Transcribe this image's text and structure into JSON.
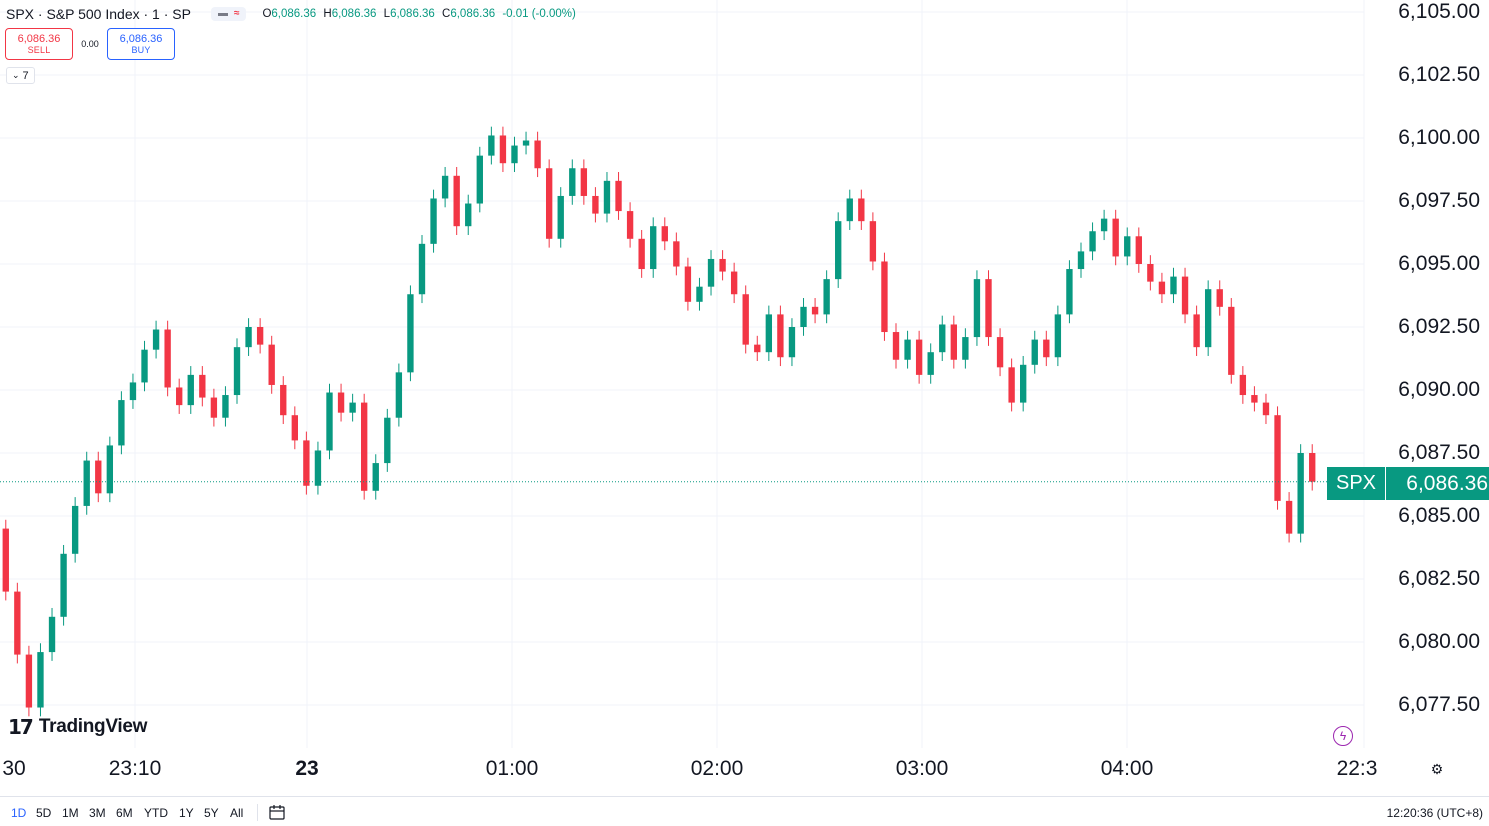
{
  "header": {
    "symbol_title": "SPX · S&P 500 Index · 1 · SP",
    "ohlc": {
      "o_label": "O",
      "o": "6,086.36",
      "h_label": "H",
      "h": "6,086.36",
      "l_label": "L",
      "l": "6,086.36",
      "c_label": "C",
      "c": "6,086.36",
      "change": "-0.01 (-0.00%)"
    }
  },
  "trade": {
    "sell_price": "6,086.36",
    "sell_label": "SELL",
    "spread": "0.00",
    "buy_price": "6,086.36",
    "buy_label": "BUY"
  },
  "indicators_toggle": {
    "count": "7"
  },
  "logo_text": "TradingView",
  "last_price": {
    "symbol": "SPX",
    "value": "6,086.36",
    "color": "#089981"
  },
  "colors": {
    "up": "#089981",
    "down": "#f23645",
    "grid": "#f0f3fa",
    "accent": "#2962ff"
  },
  "price_axis": [
    "6,105.00",
    "6,102.50",
    "6,100.00",
    "6,097.50",
    "6,095.00",
    "6,092.50",
    "6,090.00",
    "6,087.50",
    "6,085.00",
    "6,082.50",
    "6,080.00",
    "6,077.50"
  ],
  "time_axis": [
    "30",
    "23:10",
    "23",
    "01:00",
    "02:00",
    "03:00",
    "04:00",
    "22:3"
  ],
  "ranges": [
    "1D",
    "5D",
    "1M",
    "3M",
    "6M",
    "YTD",
    "1Y",
    "5Y",
    "All"
  ],
  "active_range": "1D",
  "clock": "12:20:36 (UTC+8)",
  "chart_data": {
    "type": "candlestick",
    "title": "SPX · S&P 500 Index · 1 · SP",
    "ylim": [
      6076.4,
      6105.3
    ],
    "y_ticks": [
      6077.5,
      6080,
      6082.5,
      6085,
      6087.5,
      6090,
      6092.5,
      6095,
      6097.5,
      6100,
      6102.5,
      6105
    ],
    "x_ticks": [
      "30",
      "23:10",
      "23",
      "01:00",
      "02:00",
      "03:00",
      "04:00",
      "22:3"
    ],
    "last_price": 6086.36,
    "grid": true,
    "series": [
      {
        "values": [
          [
            6084.5,
            6082.0
          ],
          [
            6082.0,
            6079.5
          ],
          [
            6079.5,
            6077.4
          ],
          [
            6077.4,
            6079.6
          ],
          [
            6079.6,
            6081.0
          ],
          [
            6081.0,
            6083.5
          ],
          [
            6083.5,
            6085.4
          ],
          [
            6085.4,
            6087.2
          ],
          [
            6087.2,
            6085.9
          ],
          [
            6085.9,
            6087.8
          ],
          [
            6087.8,
            6089.6
          ],
          [
            6089.6,
            6090.3
          ],
          [
            6090.3,
            6091.6
          ],
          [
            6091.6,
            6092.4
          ],
          [
            6092.4,
            6090.1
          ],
          [
            6090.1,
            6089.4
          ],
          [
            6089.4,
            6090.6
          ],
          [
            6090.6,
            6089.7
          ],
          [
            6089.7,
            6088.9
          ],
          [
            6088.9,
            6089.8
          ],
          [
            6089.8,
            6091.7
          ],
          [
            6091.7,
            6092.5
          ],
          [
            6092.5,
            6091.8
          ],
          [
            6091.8,
            6090.2
          ],
          [
            6090.2,
            6089.0
          ],
          [
            6089.0,
            6088.0
          ],
          [
            6088.0,
            6086.2
          ],
          [
            6086.2,
            6087.6
          ],
          [
            6087.6,
            6089.9
          ],
          [
            6089.9,
            6089.1
          ],
          [
            6089.1,
            6089.5
          ],
          [
            6089.5,
            6086.0
          ],
          [
            6086.0,
            6087.1
          ],
          [
            6087.1,
            6088.9
          ],
          [
            6088.9,
            6090.7
          ],
          [
            6090.7,
            6093.8
          ],
          [
            6093.8,
            6095.8
          ],
          [
            6095.8,
            6097.6
          ],
          [
            6097.6,
            6098.5
          ],
          [
            6098.5,
            6096.5
          ],
          [
            6096.5,
            6097.4
          ],
          [
            6097.4,
            6099.3
          ],
          [
            6099.3,
            6100.1
          ],
          [
            6100.1,
            6099.0
          ],
          [
            6099.0,
            6099.7
          ],
          [
            6099.7,
            6099.9
          ],
          [
            6099.9,
            6098.8
          ],
          [
            6098.8,
            6096.0
          ],
          [
            6096.0,
            6097.7
          ],
          [
            6097.7,
            6098.8
          ],
          [
            6098.8,
            6097.7
          ],
          [
            6097.7,
            6097.0
          ],
          [
            6097.0,
            6098.3
          ],
          [
            6098.3,
            6097.1
          ],
          [
            6097.1,
            6096.0
          ],
          [
            6096.0,
            6094.8
          ],
          [
            6094.8,
            6096.5
          ],
          [
            6096.5,
            6095.9
          ],
          [
            6095.9,
            6094.9
          ],
          [
            6094.9,
            6093.5
          ],
          [
            6093.5,
            6094.1
          ],
          [
            6094.1,
            6095.2
          ],
          [
            6095.2,
            6094.7
          ],
          [
            6094.7,
            6093.8
          ],
          [
            6093.8,
            6091.8
          ],
          [
            6091.8,
            6091.5
          ],
          [
            6091.5,
            6093.0
          ],
          [
            6093.0,
            6091.3
          ],
          [
            6091.3,
            6092.5
          ],
          [
            6092.5,
            6093.3
          ],
          [
            6093.3,
            6093.0
          ],
          [
            6093.0,
            6094.4
          ],
          [
            6094.4,
            6096.7
          ],
          [
            6096.7,
            6097.6
          ],
          [
            6097.6,
            6096.7
          ],
          [
            6096.7,
            6095.1
          ],
          [
            6095.1,
            6092.3
          ],
          [
            6092.3,
            6091.2
          ],
          [
            6091.2,
            6092.0
          ],
          [
            6092.0,
            6090.6
          ],
          [
            6090.6,
            6091.5
          ],
          [
            6091.5,
            6092.6
          ],
          [
            6092.6,
            6091.2
          ],
          [
            6091.2,
            6092.1
          ],
          [
            6092.1,
            6094.4
          ],
          [
            6094.4,
            6092.1
          ],
          [
            6092.1,
            6090.9
          ],
          [
            6090.9,
            6089.5
          ],
          [
            6089.5,
            6091.0
          ],
          [
            6091.0,
            6092.0
          ],
          [
            6092.0,
            6091.3
          ],
          [
            6091.3,
            6093.0
          ],
          [
            6093.0,
            6094.8
          ],
          [
            6094.8,
            6095.5
          ],
          [
            6095.5,
            6096.3
          ],
          [
            6096.3,
            6096.8
          ],
          [
            6096.8,
            6095.3
          ],
          [
            6095.3,
            6096.1
          ],
          [
            6096.1,
            6095.0
          ],
          [
            6095.0,
            6094.3
          ],
          [
            6094.3,
            6093.8
          ],
          [
            6093.8,
            6094.5
          ],
          [
            6094.5,
            6093.0
          ],
          [
            6093.0,
            6091.7
          ],
          [
            6091.7,
            6094.0
          ],
          [
            6094.0,
            6093.3
          ],
          [
            6093.3,
            6090.6
          ],
          [
            6090.6,
            6089.8
          ],
          [
            6089.8,
            6089.5
          ],
          [
            6089.5,
            6089.0
          ],
          [
            6089.0,
            6085.6
          ],
          [
            6085.6,
            6084.3
          ],
          [
            6084.3,
            6087.5
          ],
          [
            6087.5,
            6086.36
          ]
        ]
      }
    ]
  }
}
